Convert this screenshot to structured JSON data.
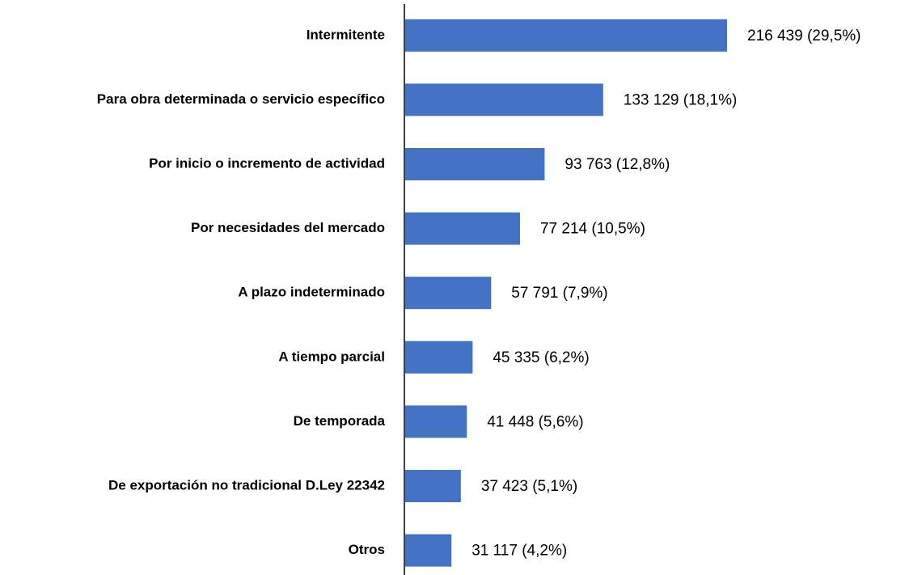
{
  "chart_data": {
    "type": "barh",
    "categories": [
      "Intermitente",
      "Para obra determinada o servicio específico",
      "Por inicio o incremento de actividad",
      "Por necesidades del mercado",
      "A plazo indeterminado",
      "A tiempo parcial",
      "De temporada",
      "De exportación no tradicional D.Ley 22342",
      "Otros"
    ],
    "values": [
      216439,
      133129,
      93763,
      77214,
      57791,
      45335,
      41448,
      37423,
      31117
    ],
    "value_labels": [
      "216 439  (29,5%)",
      "133 129  (18,1%)",
      "93 763  (12,8%)",
      "77 214  (10,5%)",
      "57 791  (7,9%)",
      "45 335  (6,2%)",
      "41 448  (5,6%)",
      "37 423  (5,1%)",
      "31 117  (4,2%)"
    ],
    "color": "#4472c4"
  }
}
